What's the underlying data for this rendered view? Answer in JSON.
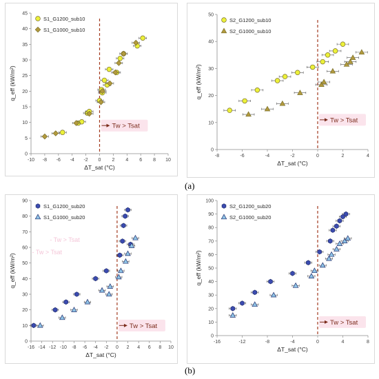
{
  "captions": [
    "(a)",
    "(b)"
  ],
  "colors": {
    "circle_fill_10": "#ecf13a",
    "triangle_fill_10": "#b29a3e",
    "circle_fill_20": "#3b4bb0",
    "triangle_fill_20": "#8fc4e6",
    "marker_edge": "#7a6f2a",
    "marker_edge_20": "#23306e",
    "threshold_line": "#a23a1e",
    "annotation_box": "#fbe4ec",
    "annotation_text": "#7b2c1c"
  },
  "chart_data": [
    {
      "type": "scatter",
      "xlabel": "ΔT_sat (°C)",
      "ylabel": "q_eff (kW/m²)",
      "xlim": [
        -10,
        10
      ],
      "ylim": [
        0,
        45
      ],
      "xticks": [
        -10,
        -8,
        -6,
        -4,
        -2,
        0,
        2,
        4,
        6,
        8,
        10
      ],
      "yticks": [
        0,
        5,
        10,
        15,
        20,
        25,
        30,
        35,
        40,
        45
      ],
      "legend_position": "top-left",
      "annotation": "Tw > Tsat",
      "threshold_x": 0,
      "series": [
        {
          "name": "S1_G1200_sub10",
          "marker": "circle",
          "x": [
            -5.4,
            -3.1,
            -2.6,
            -1.8,
            -1.5,
            0.0,
            0.3,
            0.4,
            0.7,
            1.1,
            1.4,
            2.5,
            3.0,
            3.5,
            5.5,
            6.3
          ],
          "y": [
            6.8,
            9.8,
            10.2,
            13.0,
            13.5,
            17.0,
            20.5,
            19.5,
            23.5,
            22.0,
            27.0,
            26.0,
            30.5,
            32.0,
            34.5,
            37.0
          ]
        },
        {
          "name": "S1_G1000_sub10",
          "marker": "diamond",
          "x": [
            -8.0,
            -6.4,
            -3.4,
            -1.5,
            0.2,
            0.4,
            1.5,
            2.3,
            2.8,
            3.5,
            5.3
          ],
          "y": [
            5.5,
            6.5,
            9.8,
            12.8,
            16.5,
            20.0,
            22.5,
            26.0,
            29.0,
            32.0,
            35.5
          ]
        }
      ]
    },
    {
      "type": "scatter",
      "xlabel": "ΔT_sat (°C)",
      "ylabel": "q_eff (kW/m²)",
      "xlim": [
        -8,
        4
      ],
      "ylim": [
        0,
        50
      ],
      "xticks": [
        -8,
        -6,
        -4,
        -2,
        0,
        2,
        4
      ],
      "yticks": [
        0,
        10,
        20,
        30,
        40,
        50
      ],
      "legend_position": "top-left",
      "annotation": "Tw > Tsat",
      "threshold_x": 0,
      "series": [
        {
          "name": "S2_G1200_sub10",
          "marker": "circle",
          "x": [
            -7.0,
            -5.8,
            -4.8,
            -3.2,
            -2.6,
            -1.6,
            -0.4,
            0.4,
            0.8,
            1.4,
            2.0
          ],
          "y": [
            14.5,
            18.0,
            22.0,
            25.5,
            27.0,
            28.5,
            30.5,
            32.5,
            35.0,
            36.5,
            39.0
          ]
        },
        {
          "name": "S2_G1000_sub10",
          "marker": "triangle",
          "x": [
            -5.5,
            -4.0,
            -2.8,
            -1.4,
            0.3,
            0.5,
            1.2,
            2.3,
            2.6,
            2.8,
            3.5
          ],
          "y": [
            13.0,
            15.0,
            17.0,
            21.0,
            24.0,
            25.0,
            29.0,
            31.5,
            32.5,
            34.0,
            36.0
          ]
        }
      ]
    },
    {
      "type": "scatter",
      "xlabel": "ΔT_sat (°C)",
      "ylabel": "q_eff (kW/m²)",
      "xlim": [
        -16,
        10
      ],
      "ylim": [
        0,
        90
      ],
      "xticks": [
        -16,
        -14,
        -12,
        -10,
        -8,
        -6,
        -4,
        -2,
        0,
        2,
        4,
        6,
        8,
        10
      ],
      "yticks": [
        0,
        10,
        20,
        30,
        40,
        50,
        60,
        70,
        80,
        90
      ],
      "legend_position": "top-left",
      "annotation": "Tw > Tsat",
      "threshold_x": 0,
      "series": [
        {
          "name": "S1_G1200_sub20",
          "marker": "hexagon",
          "x": [
            -15.5,
            -11.5,
            -9.5,
            -7.5,
            -4.0,
            -2.0,
            0.5,
            1.0,
            1.2,
            1.5,
            2.0,
            2.5
          ],
          "y": [
            10.0,
            20.0,
            25.0,
            30.0,
            40.0,
            45.0,
            55.0,
            64.0,
            74.0,
            80.0,
            84.0,
            62.0
          ]
        },
        {
          "name": "S1_G1000_sub20",
          "marker": "triangle",
          "x": [
            -14.3,
            -10.2,
            -8.0,
            -5.5,
            -2.8,
            -1.5,
            -1.3,
            0.3,
            0.7,
            1.6,
            2.0,
            2.7,
            3.4
          ],
          "y": [
            10.0,
            15.0,
            20.0,
            25.0,
            32.5,
            30.0,
            35.0,
            41.0,
            45.0,
            51.0,
            56.0,
            61.0,
            66.0
          ]
        }
      ]
    },
    {
      "type": "scatter",
      "xlabel": "ΔT_sat (°C)",
      "ylabel": "q_eff (kW/m²)",
      "xlim": [
        -16,
        8
      ],
      "ylim": [
        0,
        100
      ],
      "xticks": [
        -16,
        -12,
        -8,
        -4,
        0,
        4,
        8
      ],
      "yticks": [
        0,
        10,
        20,
        30,
        40,
        50,
        60,
        70,
        80,
        90,
        100
      ],
      "legend_position": "top-left",
      "annotation": "Tw > Tsat",
      "threshold_x": 0,
      "series": [
        {
          "name": "S2_G1200_sub20",
          "marker": "hexagon",
          "x": [
            -13.5,
            -12.0,
            -10.0,
            -7.5,
            -4.0,
            -1.5,
            0.3,
            2.0,
            2.4,
            3.0,
            3.5,
            4.0,
            4.5
          ],
          "y": [
            20.0,
            24.0,
            32.0,
            40.0,
            46.0,
            54.0,
            62.0,
            70.0,
            78.0,
            81.0,
            85.0,
            88.0,
            90.0
          ]
        },
        {
          "name": "S2_G1000_sub20",
          "marker": "triangle",
          "x": [
            -13.5,
            -10.0,
            -7.0,
            -3.5,
            -1.0,
            -0.5,
            0.8,
            1.8,
            2.2,
            3.0,
            3.5,
            4.3,
            4.8
          ],
          "y": [
            15.0,
            23.0,
            30.0,
            37.0,
            44.0,
            48.0,
            52.0,
            57.0,
            60.0,
            64.0,
            68.0,
            70.0,
            72.0
          ]
        }
      ]
    }
  ]
}
